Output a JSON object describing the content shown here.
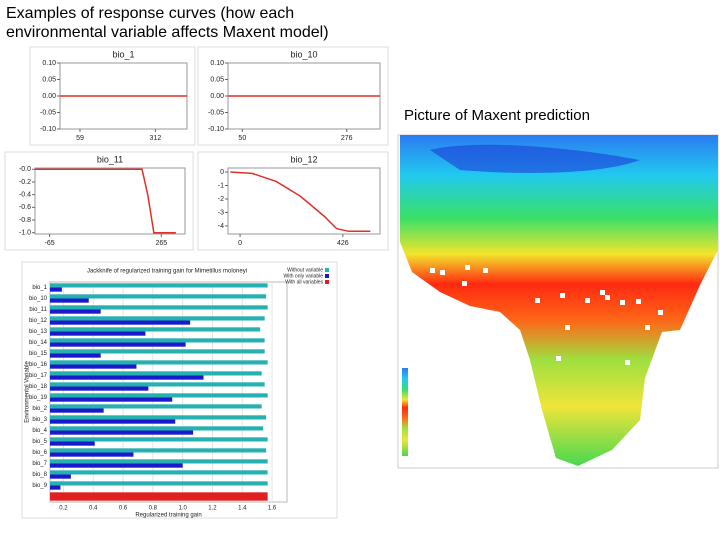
{
  "title_lines": [
    "Examples of response curves (how each",
    "environmental variable affects Maxent model)"
  ],
  "caption": "Picture of Maxent prediction",
  "chart_data": [
    {
      "type": "line",
      "title": "bio_1",
      "color": "#e0302a",
      "x": [
        -8,
        418
      ],
      "values": [
        0,
        0
      ],
      "xlim": [
        -8,
        418
      ],
      "xticks": [
        59,
        312
      ],
      "ylim": [
        -0.1,
        0.1
      ],
      "yticks": [
        {
          "value": -0.1,
          "label": "-0.10"
        },
        {
          "value": -0.05,
          "label": "-0.05"
        },
        {
          "value": 0,
          "label": "0.00"
        },
        {
          "value": 0.05,
          "label": "0.05"
        },
        {
          "value": 0.1,
          "label": "0.10"
        }
      ]
    },
    {
      "type": "line",
      "title": "bio_10",
      "color": "#e0302a",
      "x": [
        19,
        348
      ],
      "values": [
        0,
        0
      ],
      "xlim": [
        19,
        348
      ],
      "xticks": [
        50,
        276
      ],
      "ylim": [
        -0.1,
        0.1
      ],
      "yticks": [
        {
          "value": -0.1,
          "label": "-0.10"
        },
        {
          "value": -0.05,
          "label": "-0.05"
        },
        {
          "value": 0,
          "label": "0.00"
        },
        {
          "value": 0.05,
          "label": "0.05"
        },
        {
          "value": 0.1,
          "label": "0.10"
        }
      ]
    },
    {
      "type": "line",
      "title": "bio_11",
      "color": "#e0302a",
      "x": [
        -108,
        208,
        225,
        243,
        308
      ],
      "values": [
        0,
        0,
        -0.4,
        -1,
        -1
      ],
      "xlim": [
        -108,
        335
      ],
      "xticks": [
        -65,
        265
      ],
      "ylim": [
        -1.02,
        0.02
      ],
      "yticks": [
        {
          "value": 0,
          "label": "-0.0"
        },
        -0.2,
        -0.4,
        -0.6,
        -0.8,
        {
          "value": -1,
          "label": "-1.0"
        }
      ]
    },
    {
      "type": "line",
      "title": "bio_12",
      "color": "#e0302a",
      "x": [
        -40,
        50,
        150,
        250,
        350,
        400,
        450,
        540
      ],
      "values": [
        0,
        -0.1,
        -0.7,
        -1.8,
        -3.3,
        -4.2,
        -4.4,
        -4.4
      ],
      "xlim": [
        -50,
        580
      ],
      "xticks": [
        0,
        426
      ],
      "ylim": [
        -4.6,
        0.3
      ],
      "yticks": [
        0,
        -1,
        -2,
        -3,
        -4
      ]
    },
    {
      "type": "hbar",
      "title": "Jackknife of regularized training gain for Mimetillus moloneyi",
      "x_label": "Regularized training gain",
      "y_label": "Environmental Variable",
      "categories": [
        "bio_1",
        "bio_10",
        "bio_11",
        "bio_12",
        "bio_13",
        "bio_14",
        "bio_15",
        "bio_16",
        "bio_17",
        "bio_18",
        "bio_19",
        "bio_2",
        "bio_3",
        "bio_4",
        "bio_5",
        "bio_6",
        "bio_7",
        "bio_8",
        "bio_9",
        null
      ],
      "series": [
        {
          "name": "Without variable",
          "color": "#27b0b0",
          "values": [
            1.57,
            1.56,
            1.57,
            1.55,
            1.52,
            1.55,
            1.55,
            1.57,
            1.53,
            1.55,
            1.57,
            1.53,
            1.56,
            1.54,
            1.57,
            1.56,
            1.57,
            1.57,
            1.57,
            null
          ]
        },
        {
          "name": "With only variable",
          "color": "#1a1acc",
          "values": [
            0.19,
            0.37,
            0.45,
            1.05,
            0.75,
            1.02,
            0.45,
            0.69,
            1.14,
            0.77,
            0.93,
            0.47,
            0.95,
            1.07,
            0.41,
            0.67,
            1.0,
            0.25,
            0.18,
            null
          ]
        },
        {
          "name": "With all variables",
          "color": "#e02020",
          "values": [
            null,
            null,
            null,
            null,
            null,
            null,
            null,
            null,
            null,
            null,
            null,
            null,
            null,
            null,
            null,
            null,
            null,
            null,
            null,
            1.57
          ]
        }
      ],
      "xlim": [
        0.11,
        1.7
      ],
      "xticks": [
        0.2,
        0.4,
        0.6,
        0.8,
        {
          "value": 1,
          "label": "1.0"
        },
        1.2,
        1.4,
        1.6
      ]
    }
  ]
}
